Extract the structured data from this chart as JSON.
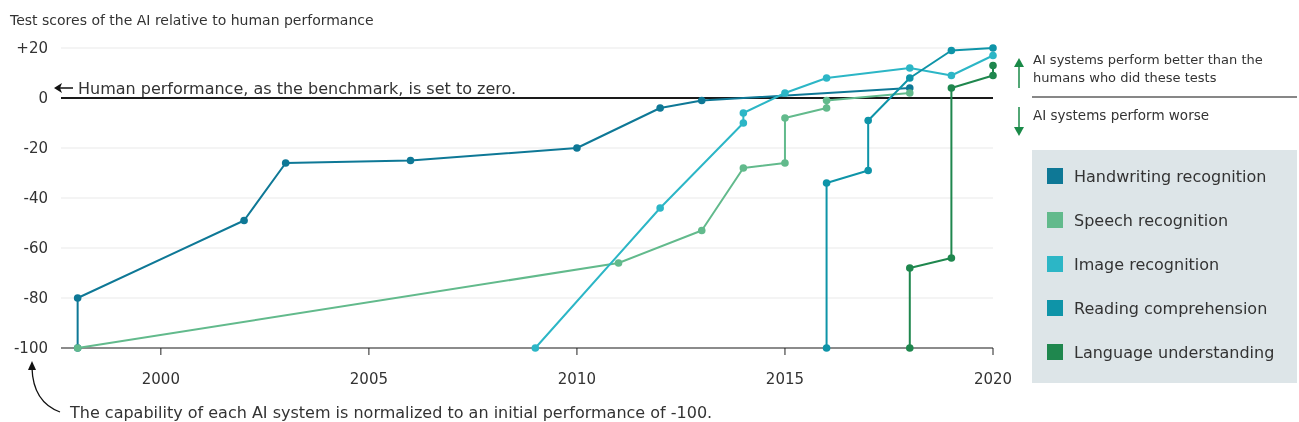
{
  "chart_data": {
    "type": "line",
    "title": "Test scores of the AI relative to human performance",
    "xlim": [
      1997.6,
      2020
    ],
    "xticks": [
      2000,
      2005,
      2010,
      2015,
      2020
    ],
    "ylim": [
      -100,
      20
    ],
    "yticks": [
      {
        "value": 20,
        "label": "+20"
      },
      0,
      -20,
      -40,
      -60,
      -80,
      -100
    ],
    "grid": "y",
    "legend": "right",
    "marker": "circle",
    "line_style": "solid",
    "ref_lines": [
      {
        "axis": "y",
        "value": 0,
        "label": "Human performance, as the benchmark, is set to zero.",
        "color": "#1a1a1a"
      }
    ],
    "annotations": [
      "AI systems perform better than the humans who did these tests",
      "AI systems perform worse",
      "The capability of each AI system is normalized to an initial performance of -100."
    ],
    "series": [
      {
        "name": "Handwriting recognition",
        "color": "#0e7896",
        "x": [
          1998,
          1998,
          2002,
          2003,
          2006,
          2010,
          2012,
          2013,
          2018
        ],
        "values": [
          -100,
          -80,
          -49,
          -26,
          -25,
          -20,
          -4,
          -1,
          4
        ]
      },
      {
        "name": "Speech recognition",
        "color": "#62ba8c",
        "x": [
          1998,
          2011,
          2013,
          2014,
          2015,
          2015,
          2016,
          2016,
          2018
        ],
        "values": [
          -100,
          -66,
          -53,
          -28,
          -26,
          -8,
          -4,
          -1,
          2
        ]
      },
      {
        "name": "Image recognition",
        "color": "#2cb6c6",
        "x": [
          2009,
          2012,
          2014,
          2014,
          2015,
          2016,
          2018,
          2019,
          2020
        ],
        "values": [
          -100,
          -44,
          -10,
          -6,
          2,
          8,
          12,
          9,
          17
        ]
      },
      {
        "name": "Reading comprehension",
        "color": "#0e94a8",
        "x": [
          2016,
          2016,
          2017,
          2017,
          2018,
          2019,
          2020
        ],
        "values": [
          -100,
          -34,
          -29,
          -9,
          8,
          19,
          20
        ]
      },
      {
        "name": "Language understanding",
        "color": "#1f874e",
        "x": [
          2018,
          2018,
          2019,
          2019,
          2020,
          2020
        ],
        "values": [
          -100,
          -68,
          -64,
          4,
          9,
          13
        ]
      }
    ]
  }
}
